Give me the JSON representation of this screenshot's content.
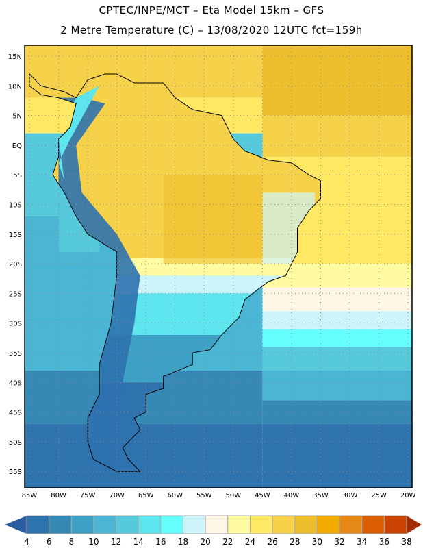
{
  "header": {
    "line1": "CPTEC/INPE/MCT –  Eta Model 15km – GFS",
    "line2": "2 Metre Temperature (C) – 13/08/2020 12UTC fct=159h"
  },
  "map": {
    "lat_labels": [
      "15N",
      "10N",
      "5N",
      "EQ",
      "5S",
      "10S",
      "15S",
      "20S",
      "25S",
      "30S",
      "35S",
      "40S",
      "45S",
      "50S",
      "55S"
    ],
    "lon_labels": [
      "85W",
      "80W",
      "75W",
      "70W",
      "65W",
      "60W",
      "55W",
      "50W",
      "45W",
      "40W",
      "35W",
      "30W",
      "25W",
      "20W"
    ]
  },
  "colorbar": {
    "labels": [
      "4",
      "6",
      "8",
      "10",
      "12",
      "14",
      "16",
      "18",
      "20",
      "22",
      "24",
      "26",
      "28",
      "30",
      "32",
      "34",
      "36",
      "38"
    ],
    "colors": [
      "#2e72ae",
      "#3688b5",
      "#3fa0c6",
      "#4ab6d3",
      "#56cadb",
      "#5ee6ee",
      "#66ffff",
      "#cdf4fb",
      "#fff7e6",
      "#fffba0",
      "#ffe864",
      "#f5d24a",
      "#eebf2c",
      "#f0aa00",
      "#e58816",
      "#d95f00",
      "#c84400"
    ],
    "under_color": "#2a5ea0",
    "over_color": "#a42c00"
  }
}
